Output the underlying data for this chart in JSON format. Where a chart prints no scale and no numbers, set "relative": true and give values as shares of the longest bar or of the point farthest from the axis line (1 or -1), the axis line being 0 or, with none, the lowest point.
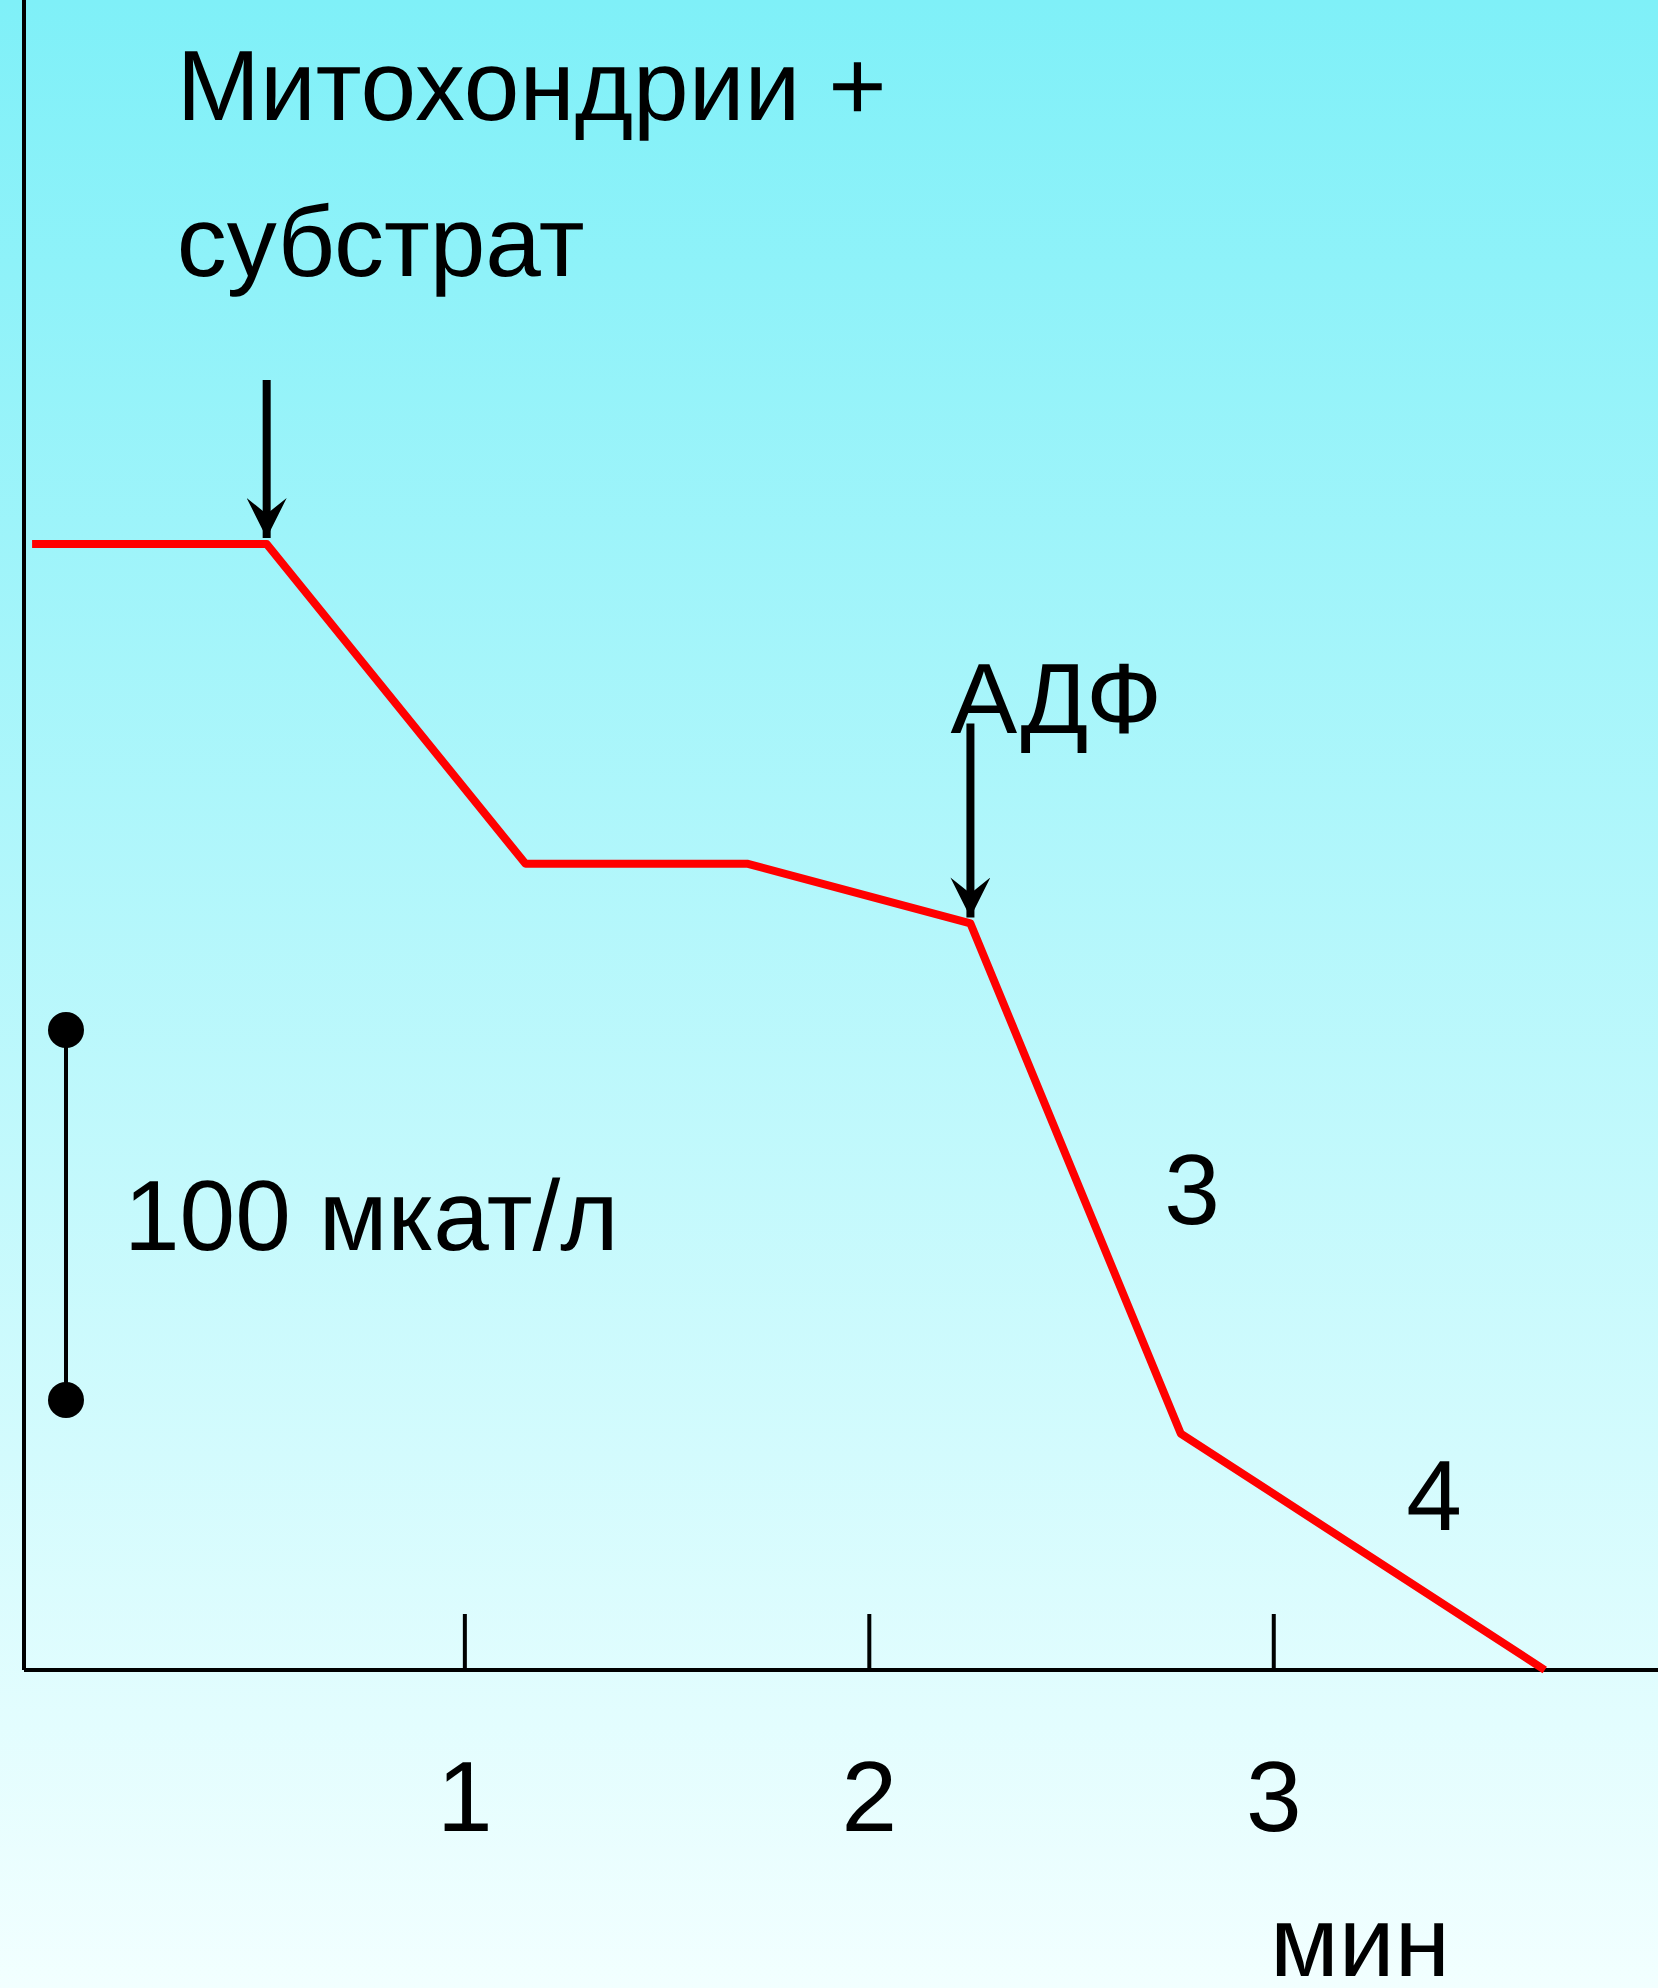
{
  "chart_data": {
    "type": "line",
    "relative": true,
    "xlabel": "мин",
    "x": [
      -0.07,
      0.51,
      1.15,
      1.7,
      2.25,
      2.77,
      3.67
    ],
    "series": [
      {
        "color": "#ff0000",
        "values": [
          1,
          1,
          0.716,
          0.716,
          0.663,
          0.21,
          0
        ]
      }
    ],
    "xlim": [
      -0.09,
      3.95
    ],
    "xticks": [
      1,
      2,
      3
    ],
    "grid": false,
    "marker": "none",
    "line_style": "solid",
    "annotations": [
      {
        "text": "Митохондрии + субстрат",
        "x": 0.51,
        "y": 1
      },
      {
        "text": "АДФ",
        "x": 2.25,
        "y": 0.663
      },
      "3",
      "4",
      "100 мкат/л"
    ]
  }
}
